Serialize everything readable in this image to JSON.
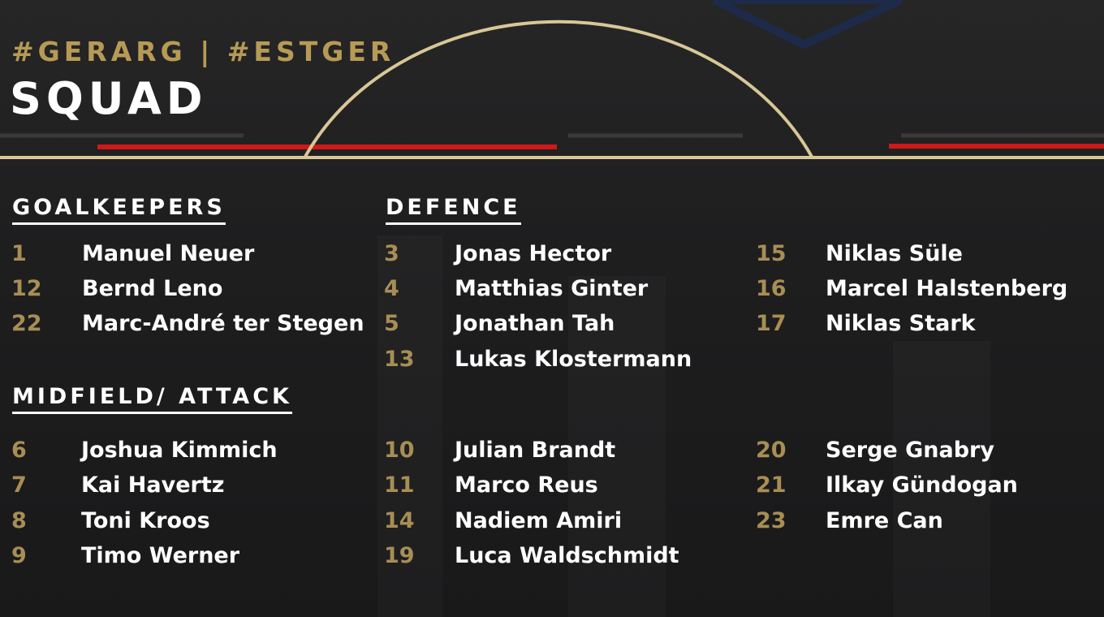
{
  "hashtag": "#GERARG | #ESTGER",
  "title": "SQUAD",
  "colors": {
    "gold": "#b79a55",
    "red": "#d01818",
    "white": "#ffffff"
  },
  "sections": {
    "goalkeepers": {
      "heading": "GOALKEEPERS",
      "players": [
        {
          "num": "1",
          "name": "Manuel Neuer"
        },
        {
          "num": "12",
          "name": "Bernd Leno"
        },
        {
          "num": "22",
          "name": "Marc-André ter Stegen"
        }
      ]
    },
    "defence": {
      "heading": "DEFENCE",
      "players": [
        {
          "num": "3",
          "name": "Jonas Hector"
        },
        {
          "num": "4",
          "name": "Matthias Ginter"
        },
        {
          "num": "5",
          "name": "Jonathan Tah"
        },
        {
          "num": "13",
          "name": "Lukas Klostermann"
        },
        {
          "num": "15",
          "name": "Niklas Süle"
        },
        {
          "num": "16",
          "name": "Marcel Halstenberg"
        },
        {
          "num": "17",
          "name": "Niklas Stark"
        }
      ]
    },
    "midfield": {
      "heading": "MIDFIELD/ ATTACK",
      "players": [
        {
          "num": "6",
          "name": "Joshua Kimmich"
        },
        {
          "num": "7",
          "name": "Kai Havertz"
        },
        {
          "num": "8",
          "name": "Toni Kroos"
        },
        {
          "num": "9",
          "name": "Timo Werner"
        },
        {
          "num": "10",
          "name": "Julian Brandt"
        },
        {
          "num": "11",
          "name": "Marco Reus"
        },
        {
          "num": "14",
          "name": "Nadiem Amiri"
        },
        {
          "num": "19",
          "name": "Luca Waldschmidt"
        },
        {
          "num": "20",
          "name": "Serge Gnabry"
        },
        {
          "num": "21",
          "name": "Ilkay Gündogan"
        },
        {
          "num": "23",
          "name": "Emre Can"
        }
      ]
    }
  }
}
